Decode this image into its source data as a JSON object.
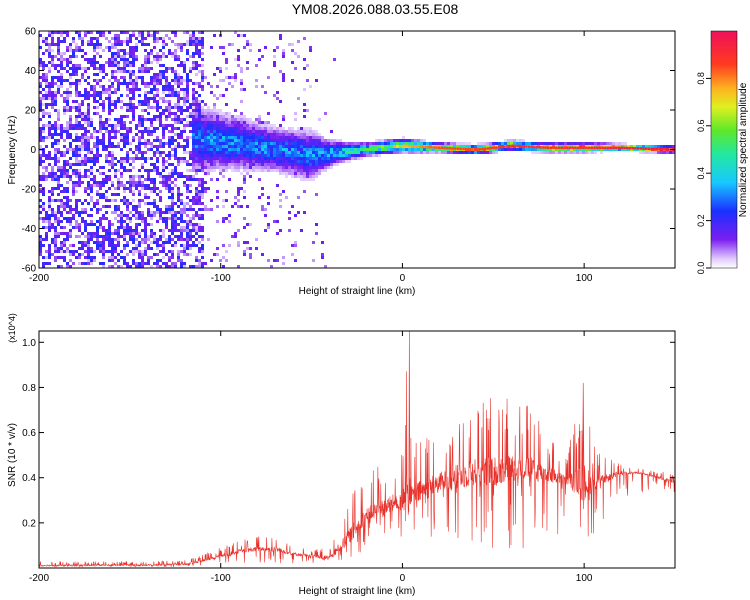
{
  "title": "YM08.2026.088.03.55.E08",
  "chart_data": [
    {
      "type": "heatmap",
      "xlabel": "Height of straight line (km)",
      "ylabel": "Frequency (Hz)",
      "xlim": [
        -200,
        150
      ],
      "ylim": [
        -60,
        60
      ],
      "x_ticks": [
        -200,
        -100,
        0,
        100
      ],
      "x_tick_labels": [
        "-200",
        "-100",
        "0",
        "100"
      ],
      "y_ticks": [
        60,
        40,
        20,
        0,
        -20,
        -40,
        -60
      ],
      "y_tick_labels": [
        "60",
        "40",
        "20",
        "0",
        "-20",
        "-40",
        "-60"
      ],
      "colorbar": {
        "label": "Normalized spectral amplitude",
        "ticks": [
          0.0,
          0.2,
          0.4,
          0.6,
          0.8
        ],
        "tick_labels": [
          "0.0",
          "0.2",
          "0.4",
          "0.6",
          "0.8"
        ],
        "range": [
          0,
          1
        ]
      },
      "ridge": {
        "x": [
          -110,
          -90,
          -70,
          -50,
          -40,
          -30,
          -20,
          -10,
          0,
          20,
          40,
          60,
          80,
          100,
          120,
          150
        ],
        "frequency": [
          5,
          3,
          0,
          -3,
          -2,
          -1,
          0,
          1,
          2,
          1,
          0,
          2,
          1,
          1,
          1,
          0
        ],
        "width": [
          14,
          12,
          10,
          11,
          6,
          4,
          3,
          3,
          3,
          2,
          2,
          2,
          2,
          2,
          1.5,
          1.5
        ],
        "peak_amplitude": [
          0.35,
          0.35,
          0.35,
          0.35,
          0.4,
          0.5,
          0.55,
          0.65,
          0.75,
          0.85,
          0.85,
          0.9,
          0.9,
          0.9,
          0.95,
          0.95
        ]
      },
      "noise_region_x": [
        -200,
        -110
      ],
      "noise_amplitude": 0.2
    },
    {
      "type": "line",
      "xlabel": "Height of straight line (km)",
      "ylabel": "SNR (10 * v/v)",
      "y_multiplier": "(x10^4)",
      "xlim": [
        -200,
        150
      ],
      "ylim": [
        0,
        1.05
      ],
      "x_ticks": [
        -200,
        -100,
        0,
        100
      ],
      "x_tick_labels": [
        "-200",
        "-100",
        "0",
        "100"
      ],
      "y_ticks": [
        0.2,
        0.4,
        0.6,
        0.8,
        1.0
      ],
      "y_tick_labels": [
        "0.2",
        "0.4",
        "0.6",
        "0.8",
        "1.0"
      ],
      "color": "#e8312a",
      "series": {
        "x": [
          -200,
          -180,
          -160,
          -140,
          -120,
          -110,
          -100,
          -90,
          -80,
          -70,
          -60,
          -50,
          -40,
          -35,
          -30,
          -25,
          -20,
          -15,
          -10,
          -5,
          0,
          2,
          5,
          10,
          20,
          30,
          40,
          50,
          60,
          70,
          80,
          90,
          95,
          100,
          105,
          110,
          120,
          130,
          140,
          150
        ],
        "baseline": [
          0.01,
          0.01,
          0.012,
          0.012,
          0.015,
          0.03,
          0.05,
          0.07,
          0.08,
          0.08,
          0.06,
          0.05,
          0.04,
          0.08,
          0.12,
          0.17,
          0.22,
          0.24,
          0.25,
          0.27,
          0.28,
          0.28,
          0.3,
          0.32,
          0.36,
          0.38,
          0.4,
          0.4,
          0.42,
          0.42,
          0.4,
          0.38,
          0.36,
          0.35,
          0.36,
          0.38,
          0.42,
          0.42,
          0.4,
          0.38
        ],
        "upper": [
          0.03,
          0.03,
          0.03,
          0.03,
          0.035,
          0.06,
          0.09,
          0.12,
          0.14,
          0.15,
          0.1,
          0.08,
          0.1,
          0.2,
          0.3,
          0.38,
          0.4,
          0.45,
          0.48,
          0.5,
          0.55,
          1.05,
          0.58,
          0.6,
          0.62,
          0.7,
          0.75,
          0.78,
          0.76,
          0.72,
          0.62,
          0.5,
          0.65,
          0.82,
          0.55,
          0.5,
          0.46,
          0.44,
          0.43,
          0.42
        ],
        "lower": [
          0.005,
          0.005,
          0.005,
          0.005,
          0.005,
          0.01,
          0.015,
          0.02,
          0.02,
          0.02,
          0.02,
          0.02,
          0.02,
          0.03,
          0.04,
          0.05,
          0.08,
          0.1,
          0.1,
          0.12,
          0.12,
          0.15,
          0.15,
          0.15,
          0.12,
          0.1,
          0.08,
          0.05,
          0.05,
          0.05,
          0.1,
          0.15,
          0.1,
          0.02,
          0.1,
          0.2,
          0.3,
          0.33,
          0.33,
          0.33
        ]
      }
    }
  ]
}
